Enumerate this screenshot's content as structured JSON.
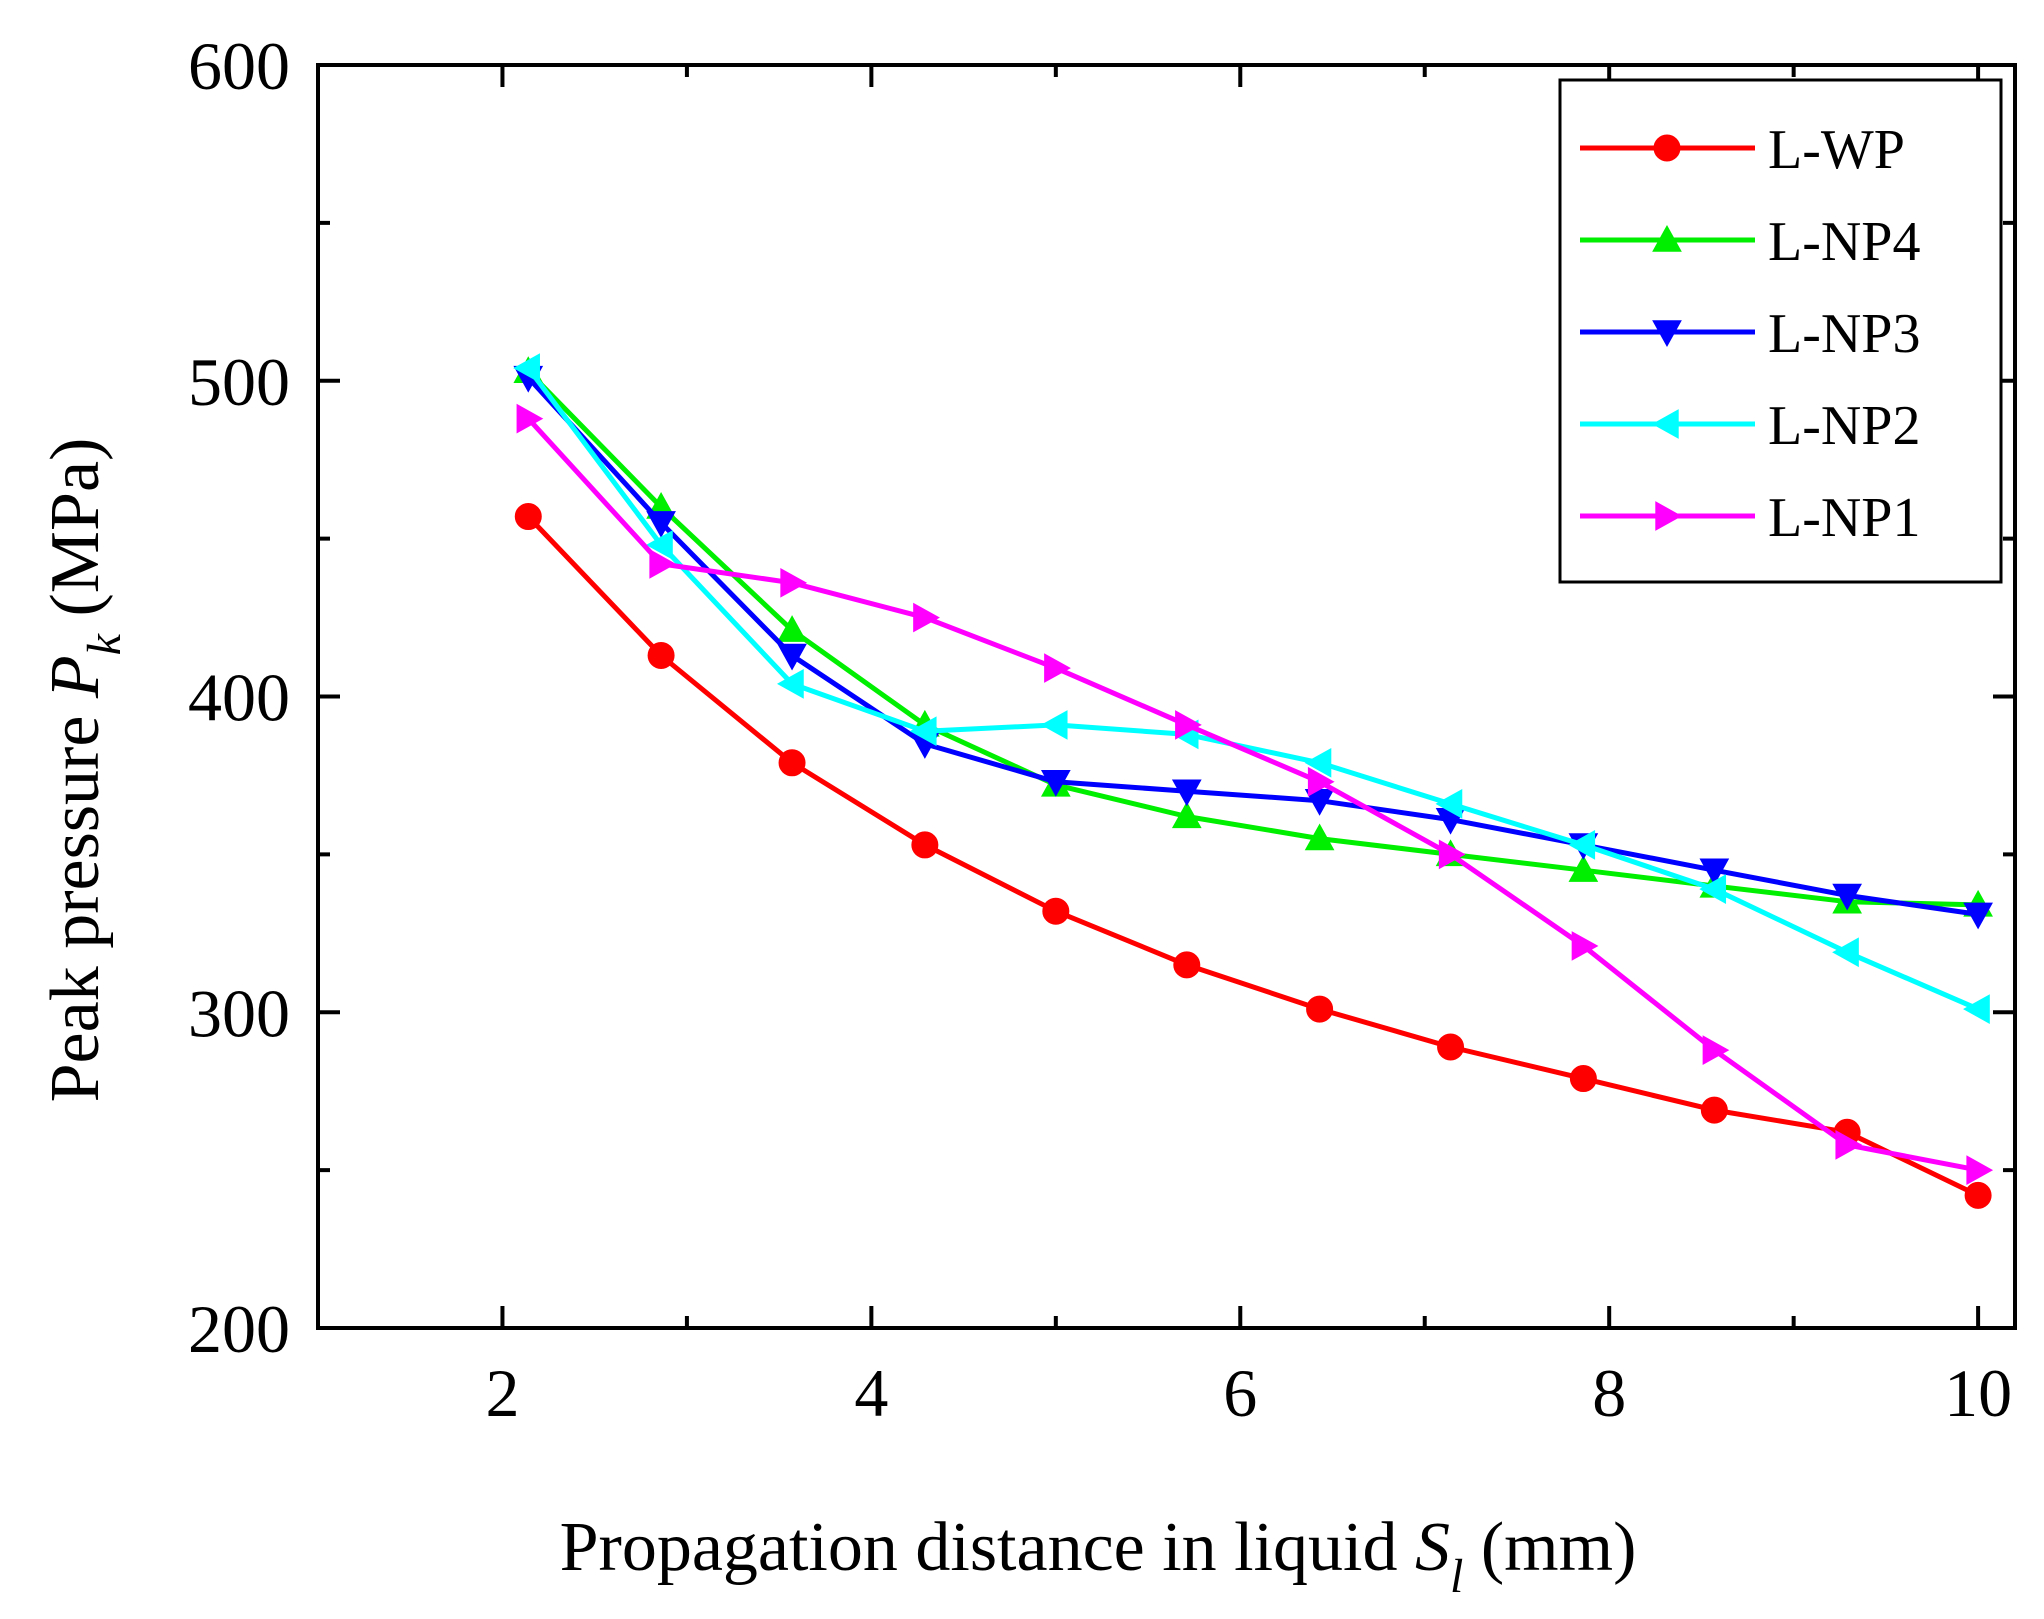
{
  "chart_data": {
    "type": "line",
    "title": "",
    "xlabel": {
      "prefix": "Propagation distance in liquid ",
      "symbol": "S",
      "subscript": "l",
      "suffix": " (mm)"
    },
    "ylabel": {
      "prefix": "Peak pressure ",
      "symbol": "P",
      "subscript": "k",
      "suffix": " (MPa)"
    },
    "xlim": [
      1,
      10.2
    ],
    "ylim": [
      200,
      600
    ],
    "x_major_ticks": [
      2,
      4,
      6,
      8,
      10
    ],
    "x_minor_ticks": [
      3,
      5,
      7,
      9
    ],
    "y_major_ticks": [
      200,
      300,
      400,
      500,
      600
    ],
    "y_minor_ticks": [
      250,
      350,
      450,
      550
    ],
    "grid": false,
    "legend_position": "top-right",
    "x": [
      2.14,
      2.86,
      3.57,
      4.29,
      5.0,
      5.71,
      6.43,
      7.14,
      7.86,
      8.57,
      9.29,
      10.0
    ],
    "series": [
      {
        "name": "L-WP",
        "color": "#ff0000",
        "marker": "circle",
        "values": [
          457,
          413,
          379,
          353,
          332,
          315,
          301,
          289,
          279,
          269,
          262,
          242
        ]
      },
      {
        "name": "L-NP4",
        "color": "#00ee00",
        "marker": "triangle-up",
        "values": [
          503,
          460,
          421,
          391,
          372,
          362,
          355,
          350,
          345,
          340,
          335,
          334
        ]
      },
      {
        "name": "L-NP3",
        "color": "#0000ff",
        "marker": "triangle-down",
        "values": [
          501,
          455,
          413,
          385,
          373,
          370,
          367,
          361,
          353,
          345,
          337,
          331
        ]
      },
      {
        "name": "L-NP2",
        "color": "#00ffff",
        "marker": "triangle-left",
        "values": [
          504,
          448,
          404,
          389,
          391,
          388,
          379,
          366,
          353,
          339,
          319,
          301
        ]
      },
      {
        "name": "L-NP1",
        "color": "#ff00ff",
        "marker": "triangle-right",
        "values": [
          488,
          442,
          436,
          425,
          409,
          391,
          373,
          350,
          321,
          288,
          258,
          250
        ]
      }
    ]
  }
}
